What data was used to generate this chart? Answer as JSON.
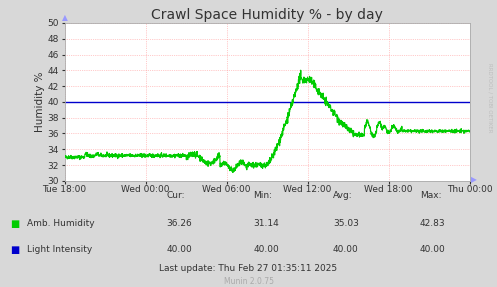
{
  "title": "Crawl Space Humidity % - by day",
  "ylabel": "Humidity %",
  "ylim": [
    30,
    50
  ],
  "yticks": [
    30,
    32,
    34,
    36,
    38,
    40,
    42,
    44,
    46,
    48,
    50
  ],
  "xlim": [
    0,
    30
  ],
  "xtick_labels": [
    "Tue 18:00",
    "Wed 00:00",
    "Wed 06:00",
    "Wed 12:00",
    "Wed 18:00",
    "Thu 00:00"
  ],
  "xtick_positions": [
    0,
    6,
    12,
    18,
    24,
    30
  ],
  "bg_color": "#d8d8d8",
  "plot_bg_color": "#ffffff",
  "grid_color": "#ff9999",
  "line_color_humidity": "#00cc00",
  "line_color_light": "#0000cc",
  "light_intensity_value": 40.0,
  "watermark": "RRDTOOL / TOBI OETIKER",
  "footer_text": "Munin 2.0.75",
  "legend_amb": "Amb. Humidity",
  "legend_light": "Light Intensity",
  "stats_header": [
    "Cur:",
    "Min:",
    "Avg:",
    "Max:"
  ],
  "stats_amb": [
    "36.26",
    "31.14",
    "35.03",
    "42.83"
  ],
  "stats_light": [
    "40.00",
    "40.00",
    "40.00",
    "40.00"
  ],
  "last_update": "Last update: Thu Feb 27 01:35:11 2025"
}
